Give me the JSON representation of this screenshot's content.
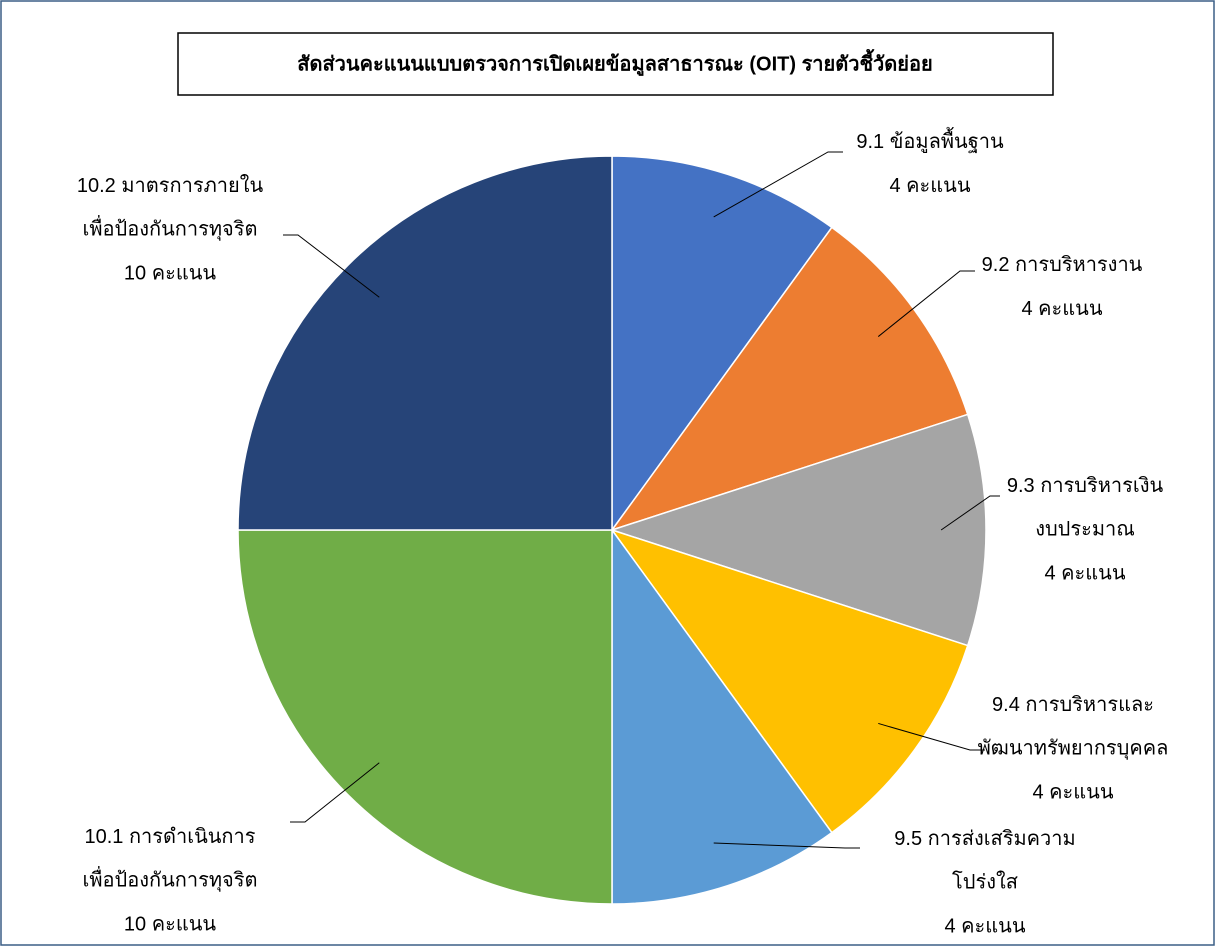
{
  "chart_data": {
    "type": "pie",
    "title": "สัดส่วนคะแนนแบบตรวจการเปิดเผยข้อมูลสาธารณะ (OIT) รายตัวชี้วัดย่อย",
    "categories": [
      "9.1 ข้อมูลพื้นฐาน",
      "9.2 การบริหารงาน",
      "9.3 การบริหารเงิน\nงบประมาณ",
      "9.4 การบริหารและ\nพัฒนาทรัพยากรบุคคล",
      "9.5 การส่งเสริมความ\nโปร่งใส",
      "10.1 การดำเนินการ\nเพื่อป้องกันการทุจริต",
      "10.2 มาตรการภายใน\nเพื่อป้องกันการทุจริต"
    ],
    "values": [
      4,
      4,
      4,
      4,
      4,
      10,
      10
    ],
    "value_labels": [
      "4 คะแนน",
      "4 คะแนน",
      "4 คะแนน",
      "4 คะแนน",
      "4 คะแนน",
      "10 คะแนน",
      "10 คะแนน"
    ],
    "colors": [
      "#4472c4",
      "#ed7d31",
      "#a5a5a5",
      "#ffc000",
      "#5b9bd5",
      "#70ad47",
      "#264478"
    ]
  }
}
